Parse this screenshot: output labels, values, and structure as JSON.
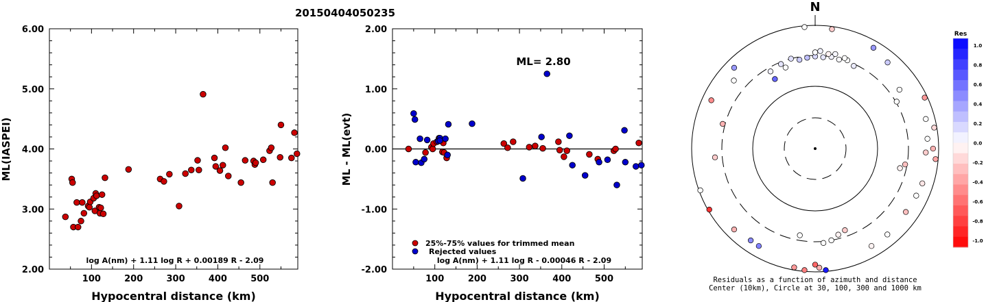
{
  "event_id": "20150404050235",
  "chart_data": [
    {
      "type": "scatter",
      "xlabel": "Hypocentral distance (km)",
      "ylabel": "ML(IASPEI)",
      "xlim": [
        0,
        590
      ],
      "ylim": [
        2.0,
        6.0
      ],
      "xticks": [
        100,
        200,
        300,
        400,
        500
      ],
      "yticks": [
        "2.00",
        "3.00",
        "4.00",
        "5.00",
        "6.00"
      ],
      "formula": "log A(nm) + 1.11 log R + 0.00189 R - 2.09",
      "colors": {
        "point": "#cc0000"
      },
      "points": [
        [
          38,
          2.87
        ],
        [
          53,
          3.5
        ],
        [
          55,
          3.44
        ],
        [
          57,
          2.7
        ],
        [
          65,
          3.11
        ],
        [
          68,
          2.7
        ],
        [
          75,
          2.8
        ],
        [
          78,
          3.11
        ],
        [
          82,
          2.93
        ],
        [
          92,
          3.05
        ],
        [
          95,
          3.03
        ],
        [
          97,
          3.12
        ],
        [
          105,
          3.18
        ],
        [
          108,
          2.97
        ],
        [
          110,
          3.26
        ],
        [
          112,
          3.22
        ],
        [
          118,
          3.03
        ],
        [
          120,
          2.93
        ],
        [
          122,
          3.02
        ],
        [
          125,
          3.24
        ],
        [
          128,
          2.92
        ],
        [
          132,
          3.52
        ],
        [
          188,
          3.66
        ],
        [
          263,
          3.5
        ],
        [
          272,
          3.46
        ],
        [
          285,
          3.58
        ],
        [
          308,
          3.05
        ],
        [
          323,
          3.59
        ],
        [
          337,
          3.65
        ],
        [
          352,
          3.81
        ],
        [
          355,
          3.65
        ],
        [
          365,
          4.91
        ],
        [
          392,
          3.85
        ],
        [
          395,
          3.71
        ],
        [
          405,
          3.64
        ],
        [
          412,
          3.73
        ],
        [
          418,
          4.02
        ],
        [
          425,
          3.55
        ],
        [
          455,
          3.44
        ],
        [
          465,
          3.81
        ],
        [
          485,
          3.8
        ],
        [
          488,
          3.74
        ],
        [
          490,
          3.77
        ],
        [
          508,
          3.82
        ],
        [
          523,
          3.97
        ],
        [
          527,
          4.02
        ],
        [
          530,
          3.44
        ],
        [
          548,
          3.86
        ],
        [
          550,
          4.4
        ],
        [
          575,
          3.85
        ],
        [
          582,
          4.27
        ],
        [
          588,
          3.92
        ]
      ]
    },
    {
      "type": "scatter",
      "xlabel": "Hypocentral distance (km)",
      "ylabel": "ML - ML(evt)",
      "xlim": [
        0,
        590
      ],
      "ylim": [
        -2.0,
        2.0
      ],
      "xticks": [
        100,
        200,
        300,
        400,
        500
      ],
      "yticks": [
        "-2.00",
        "-1.00",
        "0.00",
        "1.00",
        "2.00"
      ],
      "annotation": "ML= 2.80",
      "formula": "log A(nm) + 1.11 log R - 0.00046 R - 2.09",
      "legend": [
        {
          "label": "25%-75% values for trimmed mean",
          "color": "#cc0000"
        },
        {
          "label": "Rejected values",
          "color": "#0000cc"
        }
      ],
      "series": [
        {
          "name": "25%-75% values for trimmed mean",
          "color": "#cc0000",
          "points": [
            [
              38,
              0.0
            ],
            [
              78,
              -0.06
            ],
            [
              92,
              0.03
            ],
            [
              95,
              0.0
            ],
            [
              97,
              0.09
            ],
            [
              105,
              0.12
            ],
            [
              110,
              0.18
            ],
            [
              118,
              -0.05
            ],
            [
              120,
              0.1
            ],
            [
              122,
              -0.06
            ],
            [
              128,
              -0.15
            ],
            [
              263,
              0.09
            ],
            [
              272,
              0.02
            ],
            [
              285,
              0.12
            ],
            [
              323,
              0.03
            ],
            [
              337,
              0.05
            ],
            [
              355,
              0.01
            ],
            [
              392,
              0.12
            ],
            [
              395,
              -0.02
            ],
            [
              405,
              -0.13
            ],
            [
              412,
              -0.03
            ],
            [
              465,
              -0.09
            ],
            [
              485,
              -0.17
            ],
            [
              523,
              -0.03
            ],
            [
              527,
              0.0
            ],
            [
              582,
              0.1
            ]
          ]
        },
        {
          "name": "Rejected values",
          "color": "#0000cc",
          "points": [
            [
              50,
              0.59
            ],
            [
              53,
              0.49
            ],
            [
              55,
              -0.22
            ],
            [
              65,
              0.17
            ],
            [
              68,
              -0.23
            ],
            [
              75,
              -0.17
            ],
            [
              82,
              0.15
            ],
            [
              108,
              0.13
            ],
            [
              112,
              0.18
            ],
            [
              112,
              0.14
            ],
            [
              125,
              0.17
            ],
            [
              130,
              -0.1
            ],
            [
              132,
              0.41
            ],
            [
              188,
              0.42
            ],
            [
              308,
              -0.49
            ],
            [
              352,
              0.2
            ],
            [
              365,
              1.25
            ],
            [
              418,
              0.22
            ],
            [
              425,
              -0.27
            ],
            [
              455,
              -0.44
            ],
            [
              488,
              -0.22
            ],
            [
              508,
              -0.18
            ],
            [
              530,
              -0.6
            ],
            [
              548,
              0.31
            ],
            [
              550,
              -0.22
            ],
            [
              575,
              -0.29
            ],
            [
              588,
              -0.27
            ]
          ]
        }
      ]
    },
    {
      "type": "scatter",
      "subtype": "polar",
      "north_label": "N",
      "caption_line1": "Residuals as a function of azimuth and distance",
      "caption_line2": "Center (10km), Circle at 30, 100, 300 and 1000 km",
      "colorbar_title": "Res",
      "colorbar_ticks": [
        "1.0",
        "0.8",
        "0.6",
        "0.4",
        "0.2",
        "0.0",
        "-0.2",
        "-0.4",
        "-0.6",
        "-0.8",
        "-1.0"
      ],
      "colors": {
        "positive": "#0000ff",
        "negative": "#ff0000",
        "zero": "#ffffff"
      },
      "points": [
        {
          "az": 338,
          "dist": 280,
          "res": 0.1
        },
        {
          "az": 330,
          "dist": 260,
          "res": 0.05
        },
        {
          "az": 345,
          "dist": 300,
          "res": 0.12
        },
        {
          "az": 350,
          "dist": 270,
          "res": 0.2
        },
        {
          "az": 355,
          "dist": 280,
          "res": 0.25
        },
        {
          "az": 0,
          "dist": 290,
          "res": 0.15
        },
        {
          "az": 5,
          "dist": 285,
          "res": 0.1
        },
        {
          "az": 10,
          "dist": 300,
          "res": 0.05
        },
        {
          "az": 15,
          "dist": 290,
          "res": 0.02
        },
        {
          "az": 20,
          "dist": 310,
          "res": 0.0
        },
        {
          "az": 25,
          "dist": 280,
          "res": 0.08
        },
        {
          "az": 0,
          "dist": 340,
          "res": 0.0
        },
        {
          "az": 3,
          "dist": 360,
          "res": 0.05
        },
        {
          "az": 8,
          "dist": 330,
          "res": -0.05
        },
        {
          "az": 12,
          "dist": 345,
          "res": 0.03
        },
        {
          "az": 18,
          "dist": 325,
          "res": 0.0
        },
        {
          "az": 340,
          "dist": 235,
          "res": 0.0
        },
        {
          "az": 330,
          "dist": 190,
          "res": 0.6
        },
        {
          "az": 60,
          "dist": 310,
          "res": 0.0
        },
        {
          "az": 55,
          "dist": 440,
          "res": 0.0
        },
        {
          "az": 40,
          "dist": 650,
          "res": 0.2
        },
        {
          "az": 30,
          "dist": 760,
          "res": 0.4
        },
        {
          "az": 8,
          "dist": 900,
          "res": -0.2
        },
        {
          "az": 355,
          "dist": 950,
          "res": 0.0
        },
        {
          "az": 315,
          "dist": 700,
          "res": 0.4
        },
        {
          "az": 310,
          "dist": 500,
          "res": 0.0
        },
        {
          "az": 295,
          "dist": 700,
          "res": -0.45
        },
        {
          "az": 285,
          "dist": 330,
          "res": -0.3
        },
        {
          "az": 75,
          "dist": 700,
          "res": 0.0
        },
        {
          "az": 85,
          "dist": 650,
          "res": 0.0
        },
        {
          "az": 90,
          "dist": 800,
          "res": -0.3
        },
        {
          "az": 92,
          "dist": 600,
          "res": -0.2
        },
        {
          "az": 95,
          "dist": 900,
          "res": -0.35
        },
        {
          "az": 80,
          "dist": 900,
          "res": -0.15
        },
        {
          "az": 100,
          "dist": 280,
          "res": -0.25
        },
        {
          "az": 103,
          "dist": 240,
          "res": -0.05
        },
        {
          "az": 108,
          "dist": 650,
          "res": -0.1
        },
        {
          "az": 115,
          "dist": 620,
          "res": 0.0
        },
        {
          "az": 125,
          "dist": 600,
          "res": -0.25
        },
        {
          "az": 140,
          "dist": 640,
          "res": 0.0
        },
        {
          "az": 150,
          "dist": 650,
          "res": -0.05
        },
        {
          "az": 160,
          "dist": 240,
          "res": -0.2
        },
        {
          "az": 165,
          "dist": 260,
          "res": -0.05
        },
        {
          "az": 170,
          "dist": 300,
          "res": 0.0
        },
        {
          "az": 175,
          "dist": 320,
          "res": 0.0
        },
        {
          "az": 180,
          "dist": 750,
          "res": -0.6
        },
        {
          "az": 178,
          "dist": 850,
          "res": -0.3
        },
        {
          "az": 175,
          "dist": 950,
          "res": 0.9
        },
        {
          "az": 185,
          "dist": 950,
          "res": -0.5
        },
        {
          "az": 190,
          "dist": 900,
          "res": -0.4
        },
        {
          "az": 210,
          "dist": 650,
          "res": 0.5
        },
        {
          "az": 215,
          "dist": 640,
          "res": 0.45
        },
        {
          "az": 225,
          "dist": 700,
          "res": -0.3
        },
        {
          "az": 240,
          "dist": 950,
          "res": -0.8
        },
        {
          "az": 250,
          "dist": 950,
          "res": 0.0
        },
        {
          "az": 265,
          "dist": 400,
          "res": -0.2
        },
        {
          "az": 65,
          "dist": 900,
          "res": -0.4
        },
        {
          "az": 190,
          "dist": 250,
          "res": 0.0
        }
      ]
    }
  ]
}
